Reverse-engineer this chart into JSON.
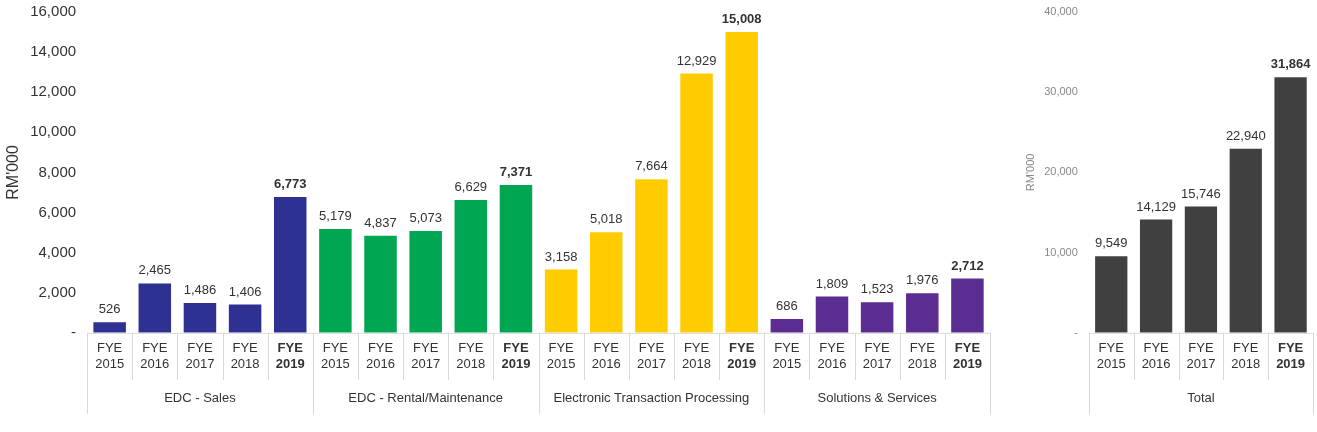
{
  "chart_data": [
    {
      "type": "bar",
      "ylabel": "RM'000",
      "categories": [
        "FYE 2015",
        "FYE 2016",
        "FYE 2017",
        "FYE 2018",
        "FYE 2019",
        "FYE 2015",
        "FYE 2016",
        "FYE 2017",
        "FYE 2018",
        "FYE 2019",
        "FYE 2015",
        "FYE 2016",
        "FYE 2017",
        "FYE 2018",
        "FYE 2019",
        "FYE 2015",
        "FYE 2016",
        "FYE 2017",
        "FYE 2018",
        "FYE 2019"
      ],
      "ylim": [
        0,
        16000
      ],
      "yticks": [
        {
          "value": 0,
          "label": "-"
        },
        {
          "value": 2000,
          "label": "2,000"
        },
        {
          "value": 4000,
          "label": "4,000"
        },
        {
          "value": 6000,
          "label": "6,000"
        },
        {
          "value": 8000,
          "label": "8,000"
        },
        {
          "value": 10000,
          "label": "10,000"
        },
        {
          "value": 12000,
          "label": "12,000"
        },
        {
          "value": 14000,
          "label": "14,000"
        },
        {
          "value": 16000,
          "label": "16,000"
        }
      ],
      "series": [
        {
          "name": "EDC - Sales",
          "color": "#2e3192",
          "values": [
            526,
            2465,
            1486,
            1406,
            6773,
            null,
            null,
            null,
            null,
            null,
            null,
            null,
            null,
            null,
            null,
            null,
            null,
            null,
            null,
            null
          ],
          "value_labels": [
            "526",
            "2,465",
            "1,486",
            "1,406",
            "6,773",
            null,
            null,
            null,
            null,
            null,
            null,
            null,
            null,
            null,
            null,
            null,
            null,
            null,
            null,
            null
          ]
        },
        {
          "name": "EDC - Rental/Maintenance",
          "color": "#00a651",
          "values": [
            null,
            null,
            null,
            null,
            null,
            5179,
            4837,
            5073,
            6629,
            7371,
            null,
            null,
            null,
            null,
            null,
            null,
            null,
            null,
            null,
            null
          ],
          "value_labels": [
            null,
            null,
            null,
            null,
            null,
            "5,179",
            "4,837",
            "5,073",
            "6,629",
            "7,371",
            null,
            null,
            null,
            null,
            null,
            null,
            null,
            null,
            null,
            null
          ]
        },
        {
          "name": "Electronic Transaction Processing",
          "color": "#ffcc00",
          "values": [
            null,
            null,
            null,
            null,
            null,
            null,
            null,
            null,
            null,
            null,
            3158,
            5018,
            7664,
            12929,
            15008,
            null,
            null,
            null,
            null,
            null
          ],
          "value_labels": [
            null,
            null,
            null,
            null,
            null,
            null,
            null,
            null,
            null,
            null,
            "3,158",
            "5,018",
            "7,664",
            "12,929",
            "15,008",
            null,
            null,
            null,
            null,
            null
          ]
        },
        {
          "name": "Solutions & Services",
          "color": "#5c2d91",
          "values": [
            null,
            null,
            null,
            null,
            null,
            null,
            null,
            null,
            null,
            null,
            null,
            null,
            null,
            null,
            null,
            686,
            1809,
            1523,
            1976,
            2712
          ],
          "value_labels": [
            null,
            null,
            null,
            null,
            null,
            null,
            null,
            null,
            null,
            null,
            null,
            null,
            null,
            null,
            null,
            "686",
            "1,809",
            "1,523",
            "1,976",
            "2,712"
          ]
        }
      ]
    },
    {
      "type": "bar",
      "ylabel": "RM'000",
      "categories": [
        "FYE 2015",
        "FYE 2016",
        "FYE 2017",
        "FYE 2018",
        "FYE 2019"
      ],
      "ylim": [
        0,
        40000
      ],
      "yticks": [
        {
          "value": 0,
          "label": "-"
        },
        {
          "value": 10000,
          "label": "10,000"
        },
        {
          "value": 20000,
          "label": "20,000"
        },
        {
          "value": 30000,
          "label": "30,000"
        },
        {
          "value": 40000,
          "label": "40,000"
        }
      ],
      "series": [
        {
          "name": "Total",
          "color": "#404040",
          "values": [
            9549,
            14129,
            15746,
            22940,
            31864
          ],
          "value_labels": [
            "9,549",
            "14,129",
            "15,746",
            "22,940",
            "31,864"
          ]
        }
      ]
    }
  ]
}
